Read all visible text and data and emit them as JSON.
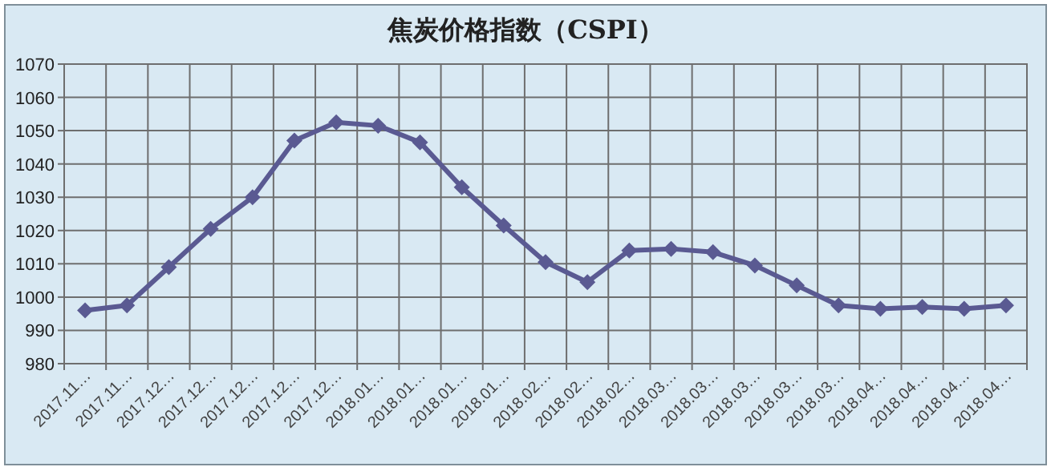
{
  "chart_data": {
    "type": "line",
    "title": "焦炭价格指数（CSPI）",
    "categories": [
      "2017.11…",
      "2017.11…",
      "2017.12…",
      "2017.12…",
      "2017.12…",
      "2017.12…",
      "2017.12…",
      "2018.01…",
      "2018.01…",
      "2018.01…",
      "2018.01…",
      "2018.02…",
      "2018.02…",
      "2018.02…",
      "2018.03…",
      "2018.03…",
      "2018.03…",
      "2018.03…",
      "2018.03…",
      "2018.04…",
      "2018.04…",
      "2018.04…",
      "2018.04…"
    ],
    "series": [
      {
        "color": "#5a5a92",
        "values": [
          996,
          997.5,
          1009,
          1020.5,
          1030,
          1047,
          1052.5,
          1051.5,
          1046.5,
          1033,
          1021.5,
          1010.5,
          1004.5,
          1014,
          1014.5,
          1013.5,
          1009.5,
          1003.5,
          997.5,
          996.5,
          997,
          996.5,
          997.5
        ]
      }
    ],
    "ylim": [
      980,
      1070
    ],
    "yticks": [
      980,
      990,
      1000,
      1010,
      1020,
      1030,
      1040,
      1050,
      1060,
      1070
    ],
    "grid": true,
    "marker": "diamond",
    "line_style": "solid"
  }
}
